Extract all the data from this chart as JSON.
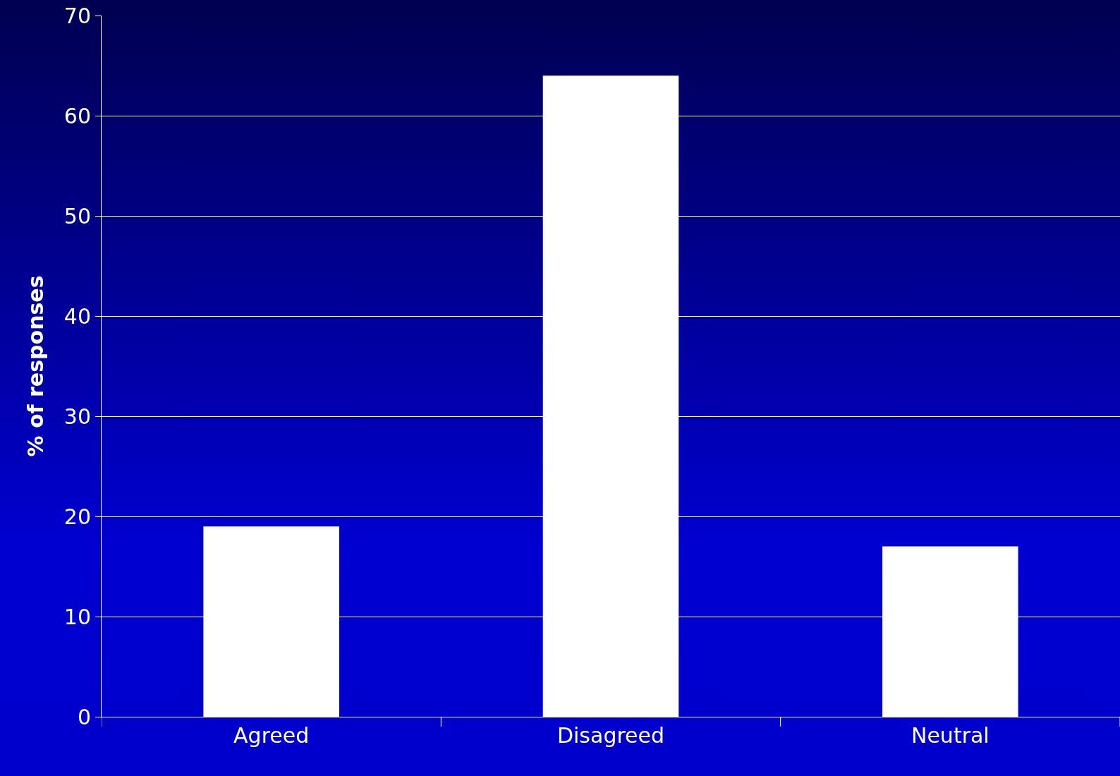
{
  "chart_data": {
    "type": "bar",
    "ylabel": "% of responses",
    "categories": [
      "Agreed",
      "Disagreed",
      "Neutral"
    ],
    "values": [
      19,
      64,
      17
    ],
    "color": "#ffffff",
    "ylim": [
      0,
      70
    ],
    "yticks": [
      0,
      10,
      20,
      30,
      40,
      50,
      60,
      70
    ],
    "grid": "y"
  }
}
